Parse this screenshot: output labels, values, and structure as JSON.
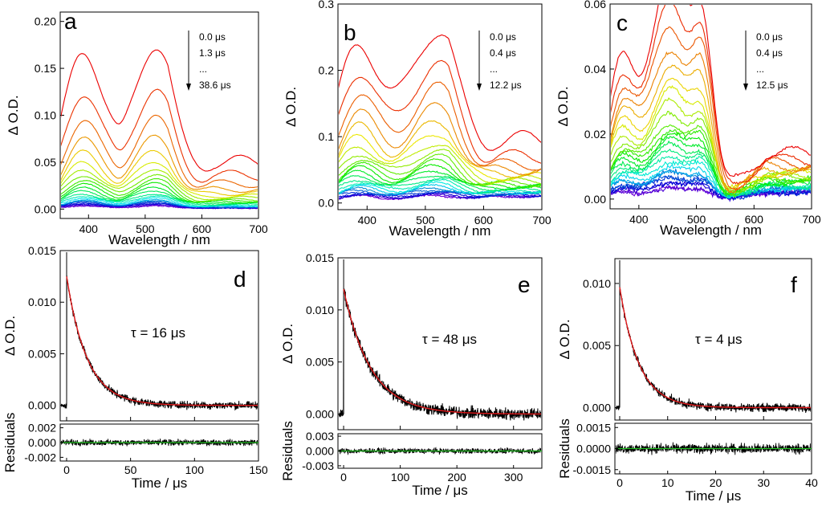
{
  "chart_data": [
    {
      "id": "a",
      "type": "line",
      "panel_label": "a",
      "xlabel": "Wavelength / nm",
      "ylabel": "Δ O.D.",
      "xlim": [
        350,
        700
      ],
      "ylim": [
        -0.01,
        0.21
      ],
      "xticks": [
        400,
        500,
        600,
        700
      ],
      "yticks": [
        0.0,
        0.05,
        0.1,
        0.15,
        0.2
      ],
      "yticklabels": [
        "0.00",
        "0.05",
        "0.10",
        "0.15",
        "0.20"
      ],
      "legend": [
        "0.0 μs",
        "1.3 μs",
        "...",
        "38.6 μs"
      ],
      "n_series": 22,
      "shape": "A",
      "series_amplitudes": [
        0.162,
        0.117,
        0.089,
        0.07,
        0.057,
        0.047,
        0.04,
        0.034,
        0.029,
        0.025,
        0.021,
        0.018,
        0.015,
        0.013,
        0.011,
        0.009,
        0.008,
        0.007,
        0.006,
        0.005,
        0.004,
        0.003
      ],
      "series_end_values": [
        0.05,
        0.036,
        0.027,
        0.021,
        0.017,
        0.014,
        0.012,
        0.01,
        0.009,
        0.008,
        0.007,
        0.006,
        0.005,
        0.004,
        0.003,
        0.003,
        0.002,
        0.002,
        0.002,
        0.001,
        0.001,
        0.001
      ],
      "noise": 0.0008
    },
    {
      "id": "b",
      "type": "line",
      "panel_label": "b",
      "xlabel": "Wavelength / nm",
      "ylabel": "Δ O.D.",
      "xlim": [
        350,
        700
      ],
      "ylim": [
        -0.01,
        0.3
      ],
      "xticks": [
        400,
        500,
        600,
        700
      ],
      "yticks": [
        0.0,
        0.1,
        0.2,
        0.3
      ],
      "yticklabels": [
        "0.0",
        "0.1",
        "0.2",
        "0.3"
      ],
      "legend": [
        "0.0 μs",
        "0.4 μs",
        "...",
        "12.2 μs"
      ],
      "n_series": 24,
      "shape": "B",
      "series_amplitudes": [
        0.235,
        0.19,
        0.157,
        0.13,
        0.11,
        0.095,
        0.082,
        0.072,
        0.063,
        0.056,
        0.05,
        0.044,
        0.039,
        0.034,
        0.03,
        0.026,
        0.023,
        0.02,
        0.018,
        0.016,
        0.014,
        0.012,
        0.011,
        0.01
      ],
      "series_end_values": [
        0.095,
        0.07,
        0.058,
        0.05,
        0.045,
        0.04,
        0.036,
        0.033,
        0.03,
        0.028,
        0.026,
        0.024,
        0.022,
        0.02,
        0.018,
        0.017,
        0.016,
        0.015,
        0.014,
        0.013,
        0.012,
        0.011,
        0.01,
        0.01
      ],
      "noise": 0.002
    },
    {
      "id": "c",
      "type": "line",
      "panel_label": "c",
      "xlabel": "Wavelength / nm",
      "ylabel": "Δ O.D.",
      "xlim": [
        350,
        700
      ],
      "ylim": [
        -0.003,
        0.06
      ],
      "xticks": [
        400,
        500,
        600,
        700
      ],
      "yticks": [
        0.0,
        0.02,
        0.04,
        0.06
      ],
      "yticklabels": [
        "0.00",
        "0.02",
        "0.04",
        "0.06"
      ],
      "legend": [
        "0.0 μs",
        "0.4 μs",
        "...",
        "12.5 μs"
      ],
      "n_series": 26,
      "shape": "C",
      "series_amplitudes": [
        0.041,
        0.036,
        0.032,
        0.028,
        0.025,
        0.022,
        0.02,
        0.018,
        0.016,
        0.014,
        0.013,
        0.012,
        0.011,
        0.01,
        0.009,
        0.008,
        0.007,
        0.006,
        0.005,
        0.005,
        0.004,
        0.004,
        0.003,
        0.003,
        0.002,
        0.002
      ],
      "series_end_values": [
        0.014,
        0.012,
        0.011,
        0.01,
        0.009,
        0.008,
        0.008,
        0.007,
        0.007,
        0.006,
        0.006,
        0.005,
        0.005,
        0.005,
        0.004,
        0.004,
        0.004,
        0.003,
        0.003,
        0.003,
        0.003,
        0.002,
        0.002,
        0.002,
        0.002,
        0.002
      ],
      "noise": 0.0012
    },
    {
      "id": "d",
      "type": "line",
      "panel_label": "d",
      "xlabel": "Time / μs",
      "ylabel": "Δ O.D.",
      "residual_ylabel": "Residuals",
      "xlim": [
        -5,
        150
      ],
      "ylim": [
        -0.0015,
        0.015
      ],
      "xticks": [
        0,
        50,
        100,
        150
      ],
      "yticks": [
        0.0,
        0.005,
        0.01,
        0.015
      ],
      "yticklabels": [
        "0.000",
        "0.005",
        "0.010",
        "0.015"
      ],
      "res_ylim": [
        -0.0025,
        0.0025
      ],
      "res_yticks": [
        -0.002,
        0.0,
        0.002
      ],
      "res_yticklabels": [
        "-0.002",
        "0.000",
        "0.002"
      ],
      "annotation": "τ = 16 μs",
      "fit": {
        "amplitude": 0.0125,
        "tau": 16
      },
      "noise": 0.00045,
      "res_noise": 0.0006
    },
    {
      "id": "e",
      "type": "line",
      "panel_label": "e",
      "xlabel": "Time / μs",
      "ylabel": "Δ O.D.",
      "residual_ylabel": "Residuals",
      "xlim": [
        -10,
        350
      ],
      "ylim": [
        -0.0015,
        0.015
      ],
      "xticks": [
        0,
        100,
        200,
        300
      ],
      "yticks": [
        0.0,
        0.005,
        0.01,
        0.015
      ],
      "yticklabels": [
        "0.000",
        "0.005",
        "0.010",
        "0.015"
      ],
      "res_ylim": [
        -0.0035,
        0.0035
      ],
      "res_yticks": [
        -0.003,
        0.0,
        0.003
      ],
      "res_yticklabels": [
        "-0.003",
        "0.000",
        "0.003"
      ],
      "annotation": "τ = 48 μs",
      "fit": {
        "amplitude": 0.012,
        "tau": 48
      },
      "noise": 0.0007,
      "res_noise": 0.0008
    },
    {
      "id": "f",
      "type": "line",
      "panel_label": "f",
      "xlabel": "Time / μs",
      "ylabel": "Δ O.D.",
      "residual_ylabel": "Residuals",
      "xlim": [
        -1,
        40
      ],
      "ylim": [
        -0.001,
        0.012
      ],
      "xticks": [
        0,
        10,
        20,
        30,
        40
      ],
      "yticks": [
        0.0,
        0.005,
        0.01
      ],
      "yticklabels": [
        "0.000",
        "0.005",
        "0.010"
      ],
      "res_ylim": [
        -0.0018,
        0.0018
      ],
      "res_yticks": [
        -0.0015,
        0.0,
        0.0015
      ],
      "res_yticklabels": [
        "-0.0015",
        "0.0000",
        "0.0015"
      ],
      "annotation": "τ = 4 μs",
      "fit": {
        "amplitude": 0.0097,
        "tau": 4
      },
      "noise": 0.0004,
      "res_noise": 0.0005
    }
  ]
}
